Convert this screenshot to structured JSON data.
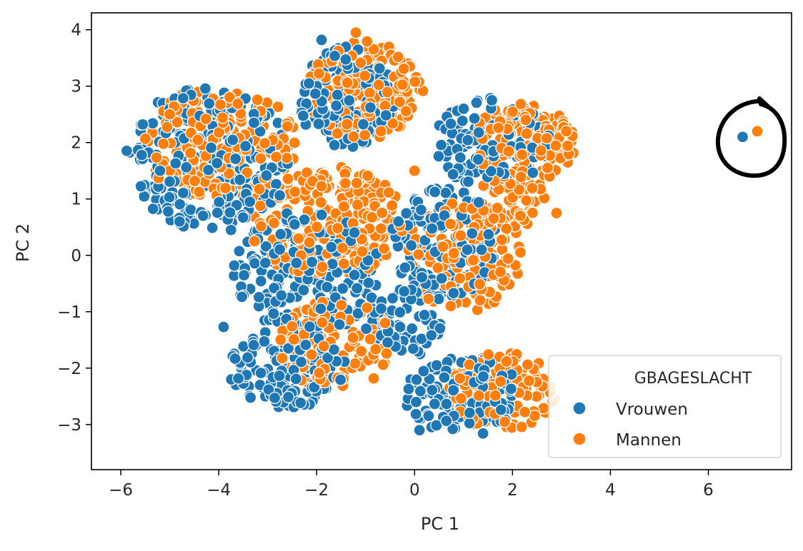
{
  "chart_data": {
    "type": "scatter",
    "xlabel": "PC 1",
    "ylabel": "PC 2",
    "xlim": [
      -6.6,
      7.7
    ],
    "ylim": [
      -3.8,
      4.3
    ],
    "xticks": [
      -6,
      -4,
      -2,
      0,
      2,
      4,
      6
    ],
    "yticks": [
      -3,
      -2,
      -1,
      0,
      1,
      2,
      3,
      4
    ],
    "grid": false,
    "legend": {
      "title": "GBAGESLACHT",
      "placement": "bottom-right"
    },
    "series": [
      {
        "name": "Vrouwen",
        "color": "#1f77b4",
        "clusters": [
          {
            "cx": -4.2,
            "cy": 1.7,
            "rx": 1.7,
            "ry": 1.3,
            "n": 260
          },
          {
            "cx": -1.4,
            "cy": 2.8,
            "rx": 1.0,
            "ry": 0.9,
            "n": 150
          },
          {
            "cx": -2.2,
            "cy": -0.3,
            "rx": 1.5,
            "ry": 1.1,
            "n": 220
          },
          {
            "cx": -2.6,
            "cy": -2.0,
            "rx": 1.2,
            "ry": 0.7,
            "n": 130
          },
          {
            "cx": 0.6,
            "cy": 0.2,
            "rx": 1.1,
            "ry": 1.0,
            "n": 140
          },
          {
            "cx": 1.6,
            "cy": 2.0,
            "rx": 1.2,
            "ry": 0.8,
            "n": 120
          },
          {
            "cx": 1.0,
            "cy": -2.5,
            "rx": 1.2,
            "ry": 0.7,
            "n": 130
          },
          {
            "cx": -0.2,
            "cy": -1.2,
            "rx": 0.8,
            "ry": 0.6,
            "n": 70
          }
        ],
        "points": [
          [
            6.7,
            2.1
          ],
          [
            -5.2,
            1.5
          ],
          [
            -3.9,
            -1.27
          ],
          [
            -1.9,
            3.82
          ],
          [
            0.1,
            -3.1
          ],
          [
            -4.8,
            0.6
          ],
          [
            1.3,
            1.7
          ]
        ]
      },
      {
        "name": "Mannen",
        "color": "#ff7f0e",
        "clusters": [
          {
            "cx": -4.0,
            "cy": 2.0,
            "rx": 1.6,
            "ry": 1.0,
            "n": 200
          },
          {
            "cx": -1.0,
            "cy": 2.9,
            "rx": 1.2,
            "ry": 0.9,
            "n": 170
          },
          {
            "cx": -1.8,
            "cy": 0.6,
            "rx": 1.6,
            "ry": 1.0,
            "n": 220
          },
          {
            "cx": -1.6,
            "cy": -1.6,
            "rx": 1.2,
            "ry": 0.8,
            "n": 140
          },
          {
            "cx": 1.0,
            "cy": 0.0,
            "rx": 1.2,
            "ry": 1.0,
            "n": 150
          },
          {
            "cx": 2.2,
            "cy": 2.0,
            "rx": 1.1,
            "ry": 0.7,
            "n": 150
          },
          {
            "cx": 1.8,
            "cy": -2.4,
            "rx": 1.1,
            "ry": 0.7,
            "n": 130
          },
          {
            "cx": 2.0,
            "cy": 1.0,
            "rx": 0.7,
            "ry": 0.5,
            "n": 60
          }
        ],
        "points": [
          [
            7.0,
            2.2
          ],
          [
            -1.2,
            3.95
          ],
          [
            2.9,
            0.75
          ],
          [
            3.1,
            2.2
          ],
          [
            -5.0,
            2.5
          ],
          [
            0.0,
            1.5
          ]
        ]
      }
    ]
  }
}
